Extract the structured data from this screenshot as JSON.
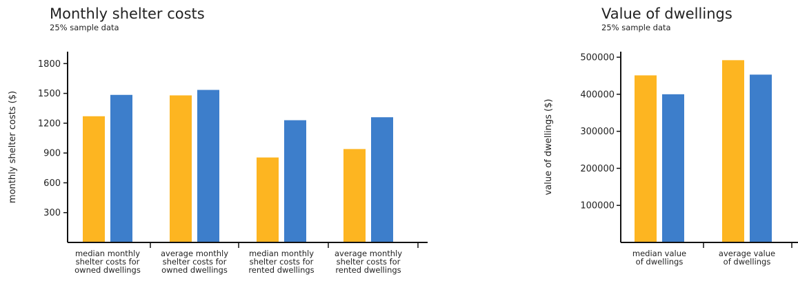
{
  "chart_data": [
    {
      "type": "bar",
      "title": "Monthly shelter costs",
      "subtitle": "25% sample data",
      "ylabel": "monthly shelter costs ($)",
      "xlabel": "",
      "categories": [
        "median monthly shelter costs for owned dwellings",
        "average monthly shelter costs for owned dwellings",
        "median monthly shelter costs for rented dwellings",
        "average monthly shelter costs for rented dwellings"
      ],
      "category_lines": [
        [
          "median monthly",
          "shelter costs for",
          "owned dwellings"
        ],
        [
          "average monthly",
          "shelter costs for",
          "owned dwellings"
        ],
        [
          "median monthly",
          "shelter costs for",
          "rented dwellings"
        ],
        [
          "average monthly",
          "shelter costs for",
          "rented dwellings"
        ]
      ],
      "series": [
        {
          "values": [
            1270,
            1480,
            855,
            940
          ]
        },
        {
          "values": [
            1485,
            1535,
            1230,
            1260
          ]
        }
      ],
      "yticks": [
        300,
        600,
        900,
        1200,
        1500,
        1800
      ],
      "ylim": [
        0,
        1920
      ],
      "grid": false,
      "legend": "none"
    },
    {
      "type": "bar",
      "title": "Value of dwellings",
      "subtitle": "25% sample data",
      "ylabel": "value of dwellings ($)",
      "xlabel": "",
      "categories": [
        "median value of dwellings",
        "average value of dwellings"
      ],
      "category_lines": [
        [
          "median value",
          "of dwellings"
        ],
        [
          "average value",
          "of dwellings"
        ]
      ],
      "series": [
        {
          "values": [
            451000,
            492000
          ]
        },
        {
          "values": [
            400000,
            453000
          ]
        }
      ],
      "yticks": [
        100000,
        200000,
        300000,
        400000,
        500000
      ],
      "ylim": [
        0,
        515000
      ],
      "grid": false,
      "legend": "none"
    }
  ],
  "colors": {
    "series_1": "#fdb521",
    "series_2": "#3d7ecb",
    "axis": "#111111",
    "text": "#222222"
  }
}
